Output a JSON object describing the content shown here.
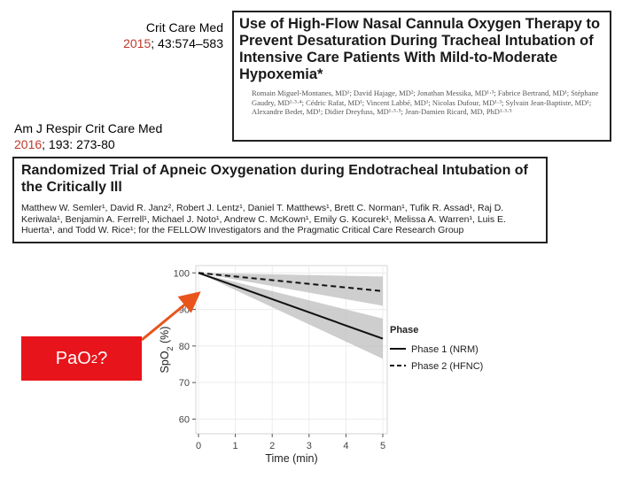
{
  "citation1": {
    "journal": "Crit Care Med",
    "year": "2015",
    "details": "; 43:574–583"
  },
  "citation2": {
    "journal": "Am J Respir Crit Care Med",
    "year": "2016",
    "details": "; 193: 273-80"
  },
  "paper1": {
    "title": "Use of High-Flow Nasal Cannula Oxygen Therapy to Prevent Desaturation During Tracheal Intubation of Intensive Care Patients With Mild-to-Moderate Hypoxemia*",
    "authors": "Romain Miguel-Montanes, MD¹; David Hajage, MD²; Jonathan Messika, MD¹·³; Fabrice Bertrand, MD¹; Stéphane Gaudry, MD¹·³·⁴; Cédric Rafat, MD¹; Vincent Labbé, MD¹; Nicolas Dufour, MD¹·³; Sylvain Jean-Baptiste, MD¹; Alexandre Bedet, MD¹; Didier Dreyfuss, MD¹·³·⁵; Jean-Damien Ricard, MD, PhD¹·³·⁵"
  },
  "paper2": {
    "title": "Randomized Trial of Apneic Oxygenation during Endotracheal Intubation of the Critically Ill",
    "authors": "Matthew W. Semler¹, David R. Janz², Robert J. Lentz¹, Daniel T. Matthews¹, Brett C. Norman¹, Tufik R. Assad¹, Raj D. Keriwala¹, Benjamin A. Ferrell¹, Michael J. Noto¹, Andrew C. McKown¹, Emily G. Kocurek¹, Melissa A. Warren¹, Luis E. Huerta¹, and Todd W. Rice¹; for the FELLOW Investigators and the Pragmatic Critical Care Research Group"
  },
  "callout": {
    "text_main": "PaO",
    "text_sub": "2",
    "text_end": "?",
    "color": "#e8141b"
  },
  "chart_data": {
    "type": "line",
    "xlabel": "Time (min)",
    "ylabel": "SpO2 (%)",
    "xlim": [
      0,
      5
    ],
    "ylim": [
      56,
      102
    ],
    "xticks": [
      0,
      1,
      2,
      3,
      4,
      5
    ],
    "yticks": [
      60,
      70,
      80,
      90,
      100
    ],
    "legend_title": "Phase",
    "legend_position": "right",
    "series": [
      {
        "name": "Phase 1 (NRM)",
        "style": "solid",
        "x": [
          0,
          5
        ],
        "y": [
          100,
          82
        ],
        "ci_low": [
          100,
          76.5
        ],
        "ci_high": [
          100,
          87.5
        ]
      },
      {
        "name": "Phase 2 (HFNC)",
        "style": "dashed",
        "x": [
          0,
          5
        ],
        "y": [
          100,
          95
        ],
        "ci_low": [
          100,
          91
        ],
        "ci_high": [
          100,
          99
        ]
      }
    ]
  }
}
